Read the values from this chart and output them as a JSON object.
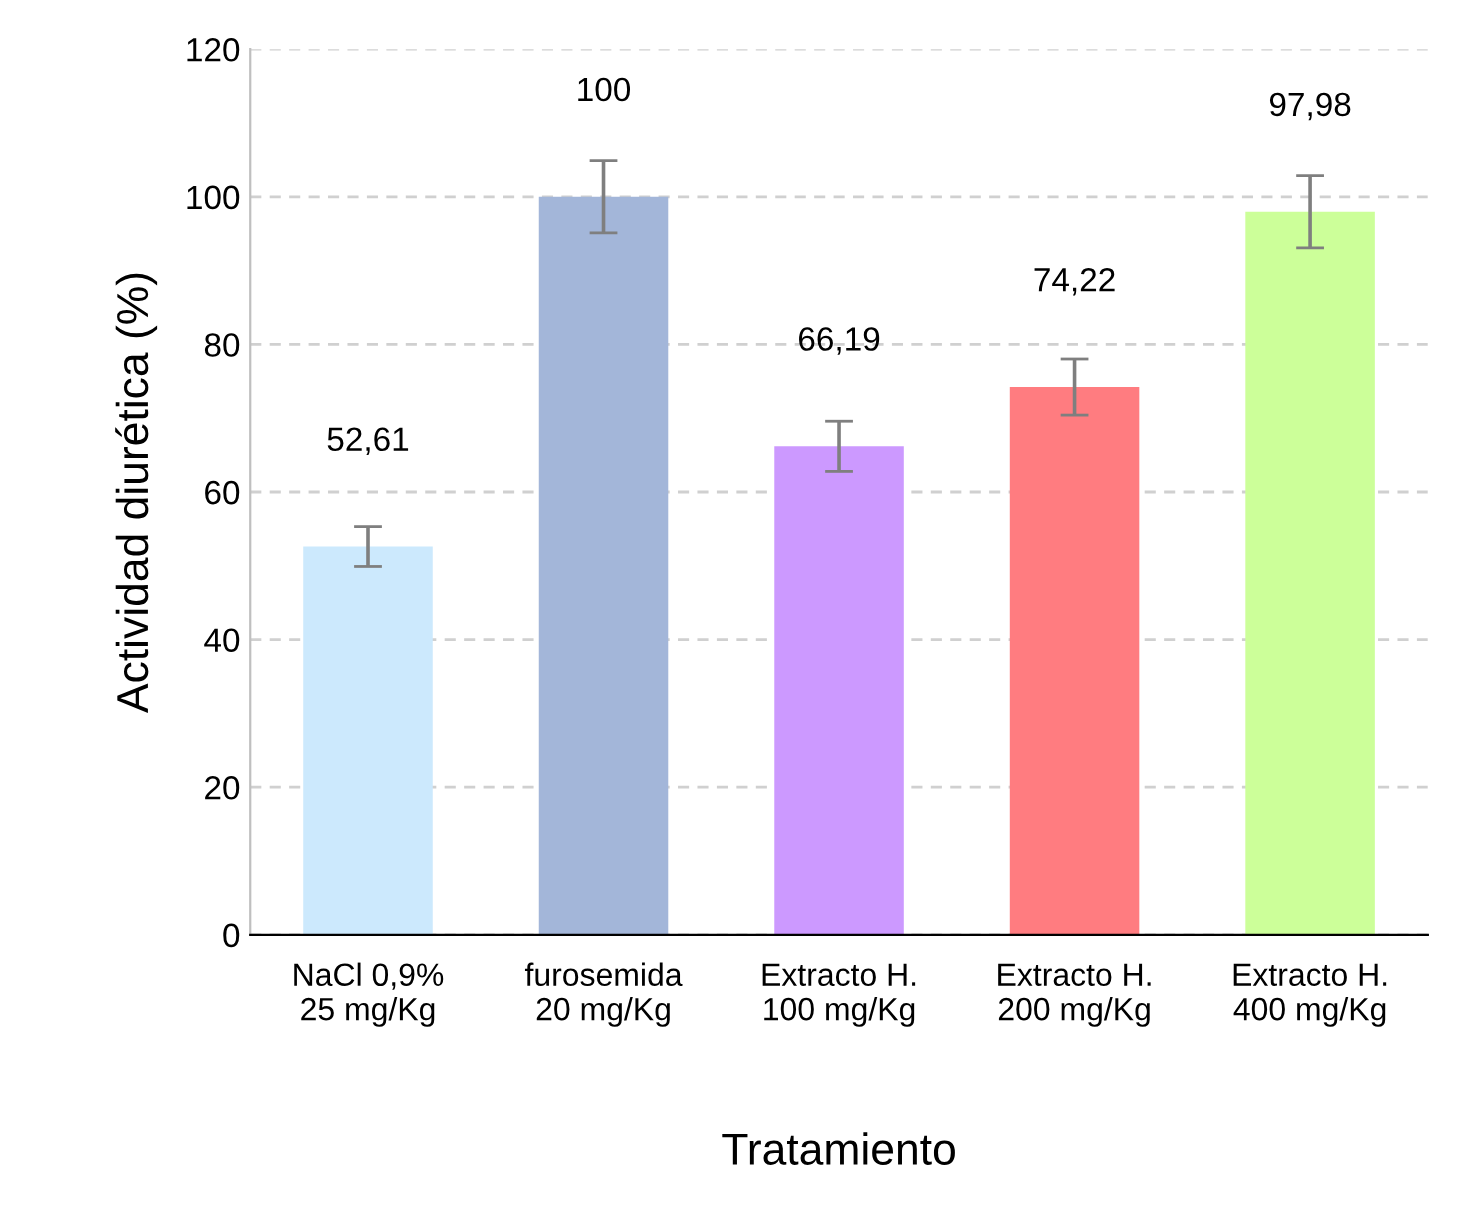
{
  "chart_data": {
    "type": "bar",
    "xlabel": "Tratamiento",
    "ylabel": "Actividad diurética (%)",
    "categories": [
      "NaCl 0,9%\n25 mg/Kg",
      "furosemida\n20 mg/Kg",
      "Extracto H.\n100 mg/Kg",
      "Extracto H.\n200 mg/Kg",
      "Extracto H.\n400 mg/Kg"
    ],
    "values": [
      52.61,
      100,
      66.19,
      74.22,
      97.98
    ],
    "value_labels": [
      "52,61",
      "100",
      "66,19",
      "74,22",
      "97,98"
    ],
    "errors": [
      2.7,
      4.9,
      3.4,
      3.8,
      4.9
    ],
    "colors": [
      "#cce9fd",
      "#a3b6d9",
      "#cc99ff",
      "#ff7c80",
      "#ccff99"
    ],
    "ylim": [
      0,
      120
    ],
    "yticks": [
      0,
      20,
      40,
      60,
      80,
      100,
      120
    ],
    "grid": "y"
  }
}
